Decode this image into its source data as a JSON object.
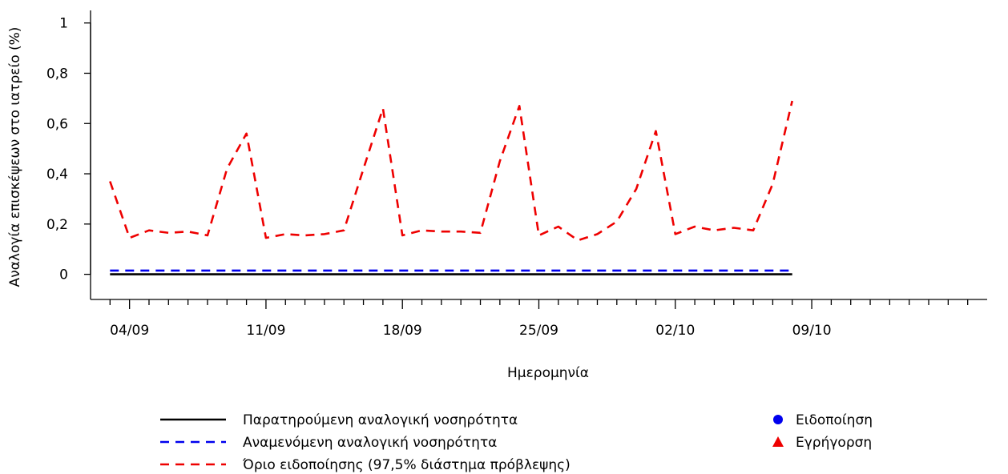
{
  "chart_data": {
    "type": "line",
    "xlabel": "Ημερομηνία",
    "ylabel": "Αναλογία επισκέψεων στο ιατρείο (%)",
    "xlim": [
      "2023-09-02",
      "2023-10-18"
    ],
    "ylim": [
      -0.1,
      1.05
    ],
    "y_ticks": [
      {
        "value": 0,
        "label": "0"
      },
      {
        "value": 0.2,
        "label": "0,2"
      },
      {
        "value": 0.4,
        "label": "0,4"
      },
      {
        "value": 0.6,
        "label": "0,6"
      },
      {
        "value": 0.8,
        "label": "0,8"
      },
      {
        "value": 1,
        "label": "1"
      }
    ],
    "x_major_ticks": [
      {
        "date": "2023-09-04",
        "label": "04/09"
      },
      {
        "date": "2023-09-11",
        "label": "11/09"
      },
      {
        "date": "2023-09-18",
        "label": "18/09"
      },
      {
        "date": "2023-09-25",
        "label": "25/09"
      },
      {
        "date": "2023-10-02",
        "label": "02/10"
      },
      {
        "date": "2023-10-09",
        "label": "09/10"
      }
    ],
    "x": [
      "2023-09-03",
      "2023-09-04",
      "2023-09-05",
      "2023-09-06",
      "2023-09-07",
      "2023-09-08",
      "2023-09-09",
      "2023-09-10",
      "2023-09-11",
      "2023-09-12",
      "2023-09-13",
      "2023-09-14",
      "2023-09-15",
      "2023-09-16",
      "2023-09-17",
      "2023-09-18",
      "2023-09-19",
      "2023-09-20",
      "2023-09-21",
      "2023-09-22",
      "2023-09-23",
      "2023-09-24",
      "2023-09-25",
      "2023-09-26",
      "2023-09-27",
      "2023-09-28",
      "2023-09-29",
      "2023-09-30",
      "2023-10-01",
      "2023-10-02",
      "2023-10-03",
      "2023-10-04",
      "2023-10-05",
      "2023-10-06",
      "2023-10-07",
      "2023-10-08"
    ],
    "series": [
      {
        "name": "Παρατηρούμενη αναλογική νοσηρότητα",
        "color": "#000000",
        "style": "solid",
        "values": [
          0,
          0,
          0,
          0,
          0,
          0,
          0,
          0,
          0,
          0,
          0,
          0,
          0,
          0,
          0,
          0,
          0,
          0,
          0,
          0,
          0,
          0,
          0,
          0,
          0,
          0,
          0,
          0,
          0,
          0,
          0,
          0,
          0,
          0,
          0,
          0
        ]
      },
      {
        "name": "Αναμενόμενη αναλογική νοσηρότητα",
        "color": "#0000ee",
        "style": "dashed",
        "values": [
          0.015,
          0.015,
          0.015,
          0.015,
          0.015,
          0.015,
          0.015,
          0.015,
          0.015,
          0.015,
          0.015,
          0.015,
          0.015,
          0.015,
          0.015,
          0.015,
          0.015,
          0.015,
          0.015,
          0.015,
          0.015,
          0.015,
          0.015,
          0.015,
          0.015,
          0.015,
          0.015,
          0.015,
          0.015,
          0.015,
          0.015,
          0.015,
          0.015,
          0.015,
          0.015,
          0.015
        ]
      },
      {
        "name": "Όριο ειδοποίησης (97,5% διάστημα πρόβλεψης)",
        "color": "#ee0000",
        "style": "dashed",
        "values": [
          0.37,
          0.145,
          0.175,
          0.165,
          0.17,
          0.155,
          0.42,
          0.56,
          0.145,
          0.16,
          0.155,
          0.16,
          0.175,
          0.42,
          0.66,
          0.155,
          0.175,
          0.17,
          0.17,
          0.165,
          0.45,
          0.67,
          0.155,
          0.19,
          0.135,
          0.16,
          0.21,
          0.34,
          0.57,
          0.16,
          0.19,
          0.175,
          0.185,
          0.175,
          0.36,
          0.69
        ]
      }
    ],
    "marker_legend": [
      {
        "name": "Ειδοποίηση",
        "shape": "circle",
        "color": "#0000ee"
      },
      {
        "name": "Εγρήγορση",
        "shape": "triangle",
        "color": "#ee0000"
      }
    ],
    "grid": false,
    "legend_position": "bottom"
  }
}
